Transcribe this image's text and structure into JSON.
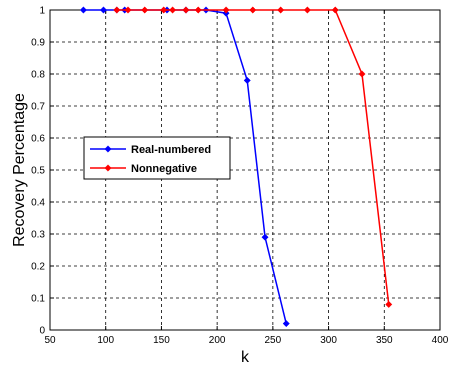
{
  "chart_data": {
    "type": "line",
    "title": "",
    "xlabel": "k",
    "ylabel": "Recovery Percentage",
    "xlim": [
      50,
      400
    ],
    "ylim": [
      0,
      1
    ],
    "xticks": [
      50,
      100,
      150,
      200,
      250,
      300,
      350,
      400
    ],
    "yticks": [
      0,
      0.1,
      0.2,
      0.3,
      0.4,
      0.5,
      0.6,
      0.7,
      0.8,
      0.9,
      1
    ],
    "grid": true,
    "legend_position": "center-left",
    "series": [
      {
        "name": "Real-numbered",
        "color": "#0000ff",
        "marker": "diamond",
        "x": [
          80,
          98,
          110,
          117,
          155,
          172,
          190,
          208,
          227,
          243,
          262
        ],
        "y": [
          1,
          1,
          1,
          1,
          1,
          1,
          1,
          0.99,
          0.78,
          0.29,
          0.02
        ]
      },
      {
        "name": "Nonnegative",
        "color": "#ff0000",
        "marker": "diamond",
        "x": [
          110,
          120,
          135,
          152,
          160,
          172,
          183,
          208,
          232,
          257,
          281,
          306,
          330,
          354
        ],
        "y": [
          1,
          1,
          1,
          1,
          1,
          1,
          1,
          1,
          1,
          1,
          1,
          1,
          0.8,
          0.08
        ]
      }
    ]
  }
}
